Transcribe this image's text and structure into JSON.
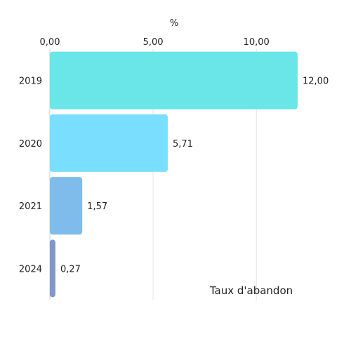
{
  "chart_data": {
    "type": "bar",
    "orientation": "horizontal",
    "categories": [
      "2019",
      "2020",
      "2021",
      "2024"
    ],
    "values": [
      12.0,
      5.71,
      1.57,
      0.27
    ],
    "value_labels": [
      "12,00",
      "5,71",
      "1,57",
      "0,27"
    ],
    "xlabel": "%",
    "xlim": [
      0,
      12
    ],
    "xticks": [
      0,
      5,
      10
    ],
    "xtick_labels": [
      "0,00",
      "5,00",
      "10,00"
    ],
    "legend": "Taux d'abandon",
    "legend_position": "bottom-right",
    "grid": true,
    "colors": [
      "#6ae5e8",
      "#7adfff",
      "#80bceb",
      "#8197c9"
    ]
  }
}
